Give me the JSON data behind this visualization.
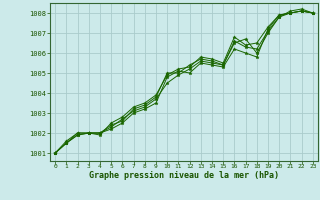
{
  "xlabel": "Graphe pression niveau de la mer (hPa)",
  "bg_color": "#cceaea",
  "grid_color": "#aacccc",
  "line_color": "#1a6600",
  "marker_color": "#1a6600",
  "xlim": [
    -0.5,
    23.5
  ],
  "ylim": [
    1000.6,
    1008.5
  ],
  "yticks": [
    1001,
    1002,
    1003,
    1004,
    1005,
    1006,
    1007,
    1008
  ],
  "xticks": [
    0,
    1,
    2,
    3,
    4,
    5,
    6,
    7,
    8,
    9,
    10,
    11,
    12,
    13,
    14,
    15,
    16,
    17,
    18,
    19,
    20,
    21,
    22,
    23
  ],
  "series": [
    [
      1001.0,
      1001.5,
      1001.9,
      1002.0,
      1002.0,
      1002.2,
      1002.5,
      1003.0,
      1003.2,
      1003.5,
      1004.8,
      1005.1,
      1005.0,
      1005.5,
      1005.4,
      1005.3,
      1006.2,
      1006.0,
      1005.8,
      1007.2,
      1007.9,
      1008.0,
      1008.1,
      1008.0
    ],
    [
      1001.0,
      1001.5,
      1001.9,
      1002.0,
      1002.0,
      1002.3,
      1002.7,
      1003.1,
      1003.3,
      1003.7,
      1004.5,
      1004.9,
      1005.2,
      1005.6,
      1005.5,
      1005.4,
      1006.5,
      1006.7,
      1006.0,
      1007.0,
      1007.8,
      1008.1,
      1008.2,
      1008.0
    ],
    [
      1001.0,
      1001.5,
      1002.0,
      1002.0,
      1001.9,
      1002.5,
      1002.8,
      1003.3,
      1003.5,
      1003.9,
      1004.9,
      1005.2,
      1005.3,
      1005.8,
      1005.7,
      1005.5,
      1006.8,
      1006.4,
      1006.5,
      1007.3,
      1007.9,
      1008.0,
      1008.1,
      1008.0
    ],
    [
      1001.0,
      1001.6,
      1002.0,
      1002.0,
      1002.0,
      1002.4,
      1002.6,
      1003.2,
      1003.4,
      1003.8,
      1005.0,
      1005.0,
      1005.4,
      1005.7,
      1005.6,
      1005.4,
      1006.6,
      1006.3,
      1006.2,
      1007.1,
      1007.8,
      1008.0,
      1008.1,
      1008.0
    ]
  ]
}
